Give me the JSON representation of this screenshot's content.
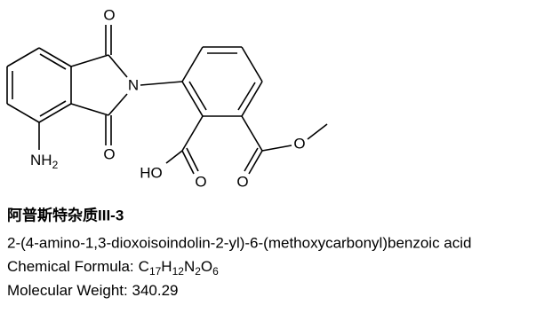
{
  "atoms": {
    "o_top": "O",
    "n": "N",
    "o_bottom": "O",
    "nh2": [
      "NH",
      "2"
    ],
    "ho": "HO",
    "o_acid": "O",
    "o_ester_carbonyl": "O",
    "o_ester": "O"
  },
  "compound": {
    "title": "阿普斯特杂质III-3",
    "name": "2-(4-amino-1,3-dioxoisoindolin-2-yl)-6-(methoxycarbonyl)benzoic acid",
    "formula": {
      "label": "Chemical Formula:",
      "parts": [
        "C",
        "17",
        "H",
        "12",
        "N",
        "2",
        "O",
        "6"
      ]
    },
    "weight": {
      "label": "Molecular Weight:",
      "value": "340.29"
    }
  }
}
